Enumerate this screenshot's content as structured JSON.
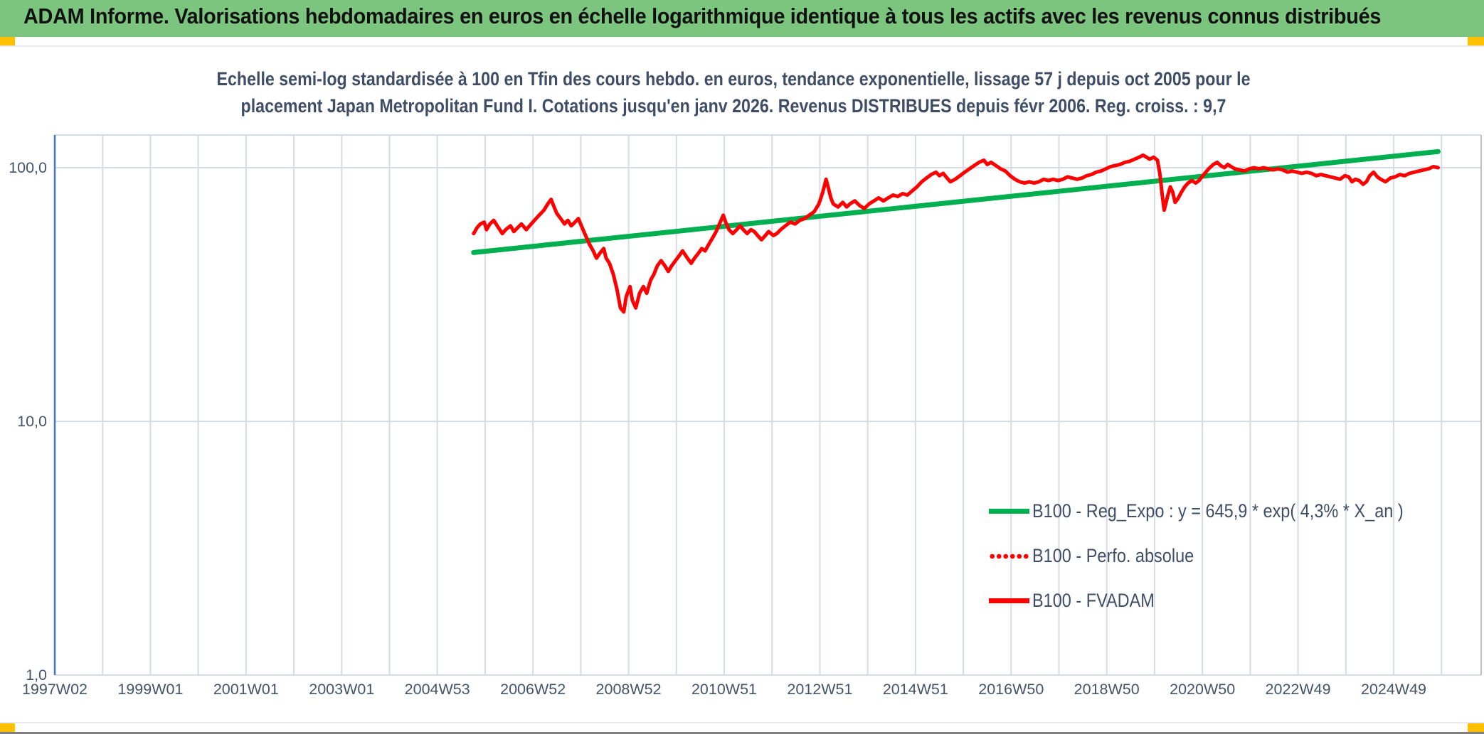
{
  "header": {
    "title": "ADAM Informe. Valorisations hebdomadaires en euros en échelle logarithmique identique à tous les actifs avec les revenus connus distribués"
  },
  "colors": {
    "header_bg": "#7CC57E",
    "accent_gold": "#FFC000",
    "chart_text": "#3F4E66",
    "axis_text": "#44546A",
    "red": "#FF0000",
    "green": "#00B050",
    "axis_blue": "#4472C4",
    "gridline": "#D6DCE5",
    "plot_border": "#BFBFBF",
    "footer_line": "#7F7F7F"
  },
  "chart_data": {
    "type": "line",
    "log_scale_y": true,
    "title_lines": {
      "line1": "Echelle semi-log standardisée à 100 en Tfin des cours hebdo. en euros, tendance exponentielle, lissage 57 j depuis oct 2005 pour le",
      "line2": "placement Japan Metropolitan Fund I. Cotations jusqu'en janv 2026. Revenus DISTRIBUES depuis févr 2006. Reg. croiss. : 9,7"
    },
    "y_axis": {
      "ticks": [
        {
          "value": 100,
          "label": "100,0"
        },
        {
          "value": 10,
          "label": "10,0"
        },
        {
          "value": 1,
          "label": "1,0"
        }
      ],
      "range": [
        1,
        134
      ]
    },
    "x_axis": {
      "start_year": 1997.02,
      "end_year": 2026.85,
      "gridline_every_years": 1,
      "label_every_years": 2,
      "tick_labels": [
        "1997W02",
        "1999W01",
        "2001W01",
        "2003W01",
        "2004W53",
        "2006W52",
        "2008W52",
        "2010W51",
        "2012W51",
        "2014W51",
        "2016W50",
        "2018W50",
        "2020W50",
        "2022W49",
        "2024W49"
      ]
    },
    "legend_position": "inside-right",
    "series": [
      {
        "name": "B100 - Reg_Expo : y = 645,9 * exp( 4,3% *  X_an )",
        "color": "#00B050",
        "style": "solid",
        "width": 7,
        "points": [
          [
            2005.78,
            46.3
          ],
          [
            2025.95,
            115.8
          ]
        ]
      },
      {
        "name": "B100 - Perfo. absolue",
        "color": "#FF0000",
        "style": "dotted",
        "width": 4,
        "same_as": "B100 - FVADAM",
        "points": []
      },
      {
        "name": "B100 - FVADAM",
        "color": "#FF0000",
        "style": "solid",
        "width": 5,
        "points": [
          [
            2005.78,
            55
          ],
          [
            2005.85,
            58
          ],
          [
            2005.92,
            60
          ],
          [
            2006.0,
            61
          ],
          [
            2006.05,
            57
          ],
          [
            2006.12,
            60
          ],
          [
            2006.2,
            62
          ],
          [
            2006.3,
            58
          ],
          [
            2006.38,
            55
          ],
          [
            2006.45,
            57
          ],
          [
            2006.55,
            59
          ],
          [
            2006.62,
            56
          ],
          [
            2006.7,
            58
          ],
          [
            2006.78,
            60
          ],
          [
            2006.88,
            57
          ],
          [
            2006.95,
            59
          ],
          [
            2007.05,
            62
          ],
          [
            2007.15,
            65
          ],
          [
            2007.25,
            68
          ],
          [
            2007.33,
            72
          ],
          [
            2007.4,
            75
          ],
          [
            2007.45,
            71
          ],
          [
            2007.52,
            66
          ],
          [
            2007.6,
            63
          ],
          [
            2007.68,
            60
          ],
          [
            2007.75,
            62
          ],
          [
            2007.82,
            59
          ],
          [
            2007.9,
            61
          ],
          [
            2007.97,
            63
          ],
          [
            2008.05,
            58
          ],
          [
            2008.12,
            54
          ],
          [
            2008.2,
            50
          ],
          [
            2008.28,
            47
          ],
          [
            2008.35,
            44
          ],
          [
            2008.42,
            46
          ],
          [
            2008.5,
            48
          ],
          [
            2008.55,
            44
          ],
          [
            2008.62,
            42
          ],
          [
            2008.7,
            38
          ],
          [
            2008.78,
            33
          ],
          [
            2008.85,
            28
          ],
          [
            2008.92,
            27
          ],
          [
            2008.97,
            31
          ],
          [
            2009.05,
            34
          ],
          [
            2009.1,
            30
          ],
          [
            2009.17,
            28
          ],
          [
            2009.25,
            32
          ],
          [
            2009.33,
            34
          ],
          [
            2009.4,
            32
          ],
          [
            2009.48,
            36
          ],
          [
            2009.55,
            38
          ],
          [
            2009.62,
            41
          ],
          [
            2009.7,
            43
          ],
          [
            2009.78,
            41
          ],
          [
            2009.85,
            39
          ],
          [
            2009.92,
            41
          ],
          [
            2010.0,
            43
          ],
          [
            2010.08,
            45
          ],
          [
            2010.15,
            47
          ],
          [
            2010.25,
            44
          ],
          [
            2010.33,
            42
          ],
          [
            2010.4,
            44
          ],
          [
            2010.48,
            46
          ],
          [
            2010.55,
            48
          ],
          [
            2010.62,
            47
          ],
          [
            2010.7,
            50
          ],
          [
            2010.78,
            53
          ],
          [
            2010.85,
            56
          ],
          [
            2010.92,
            60
          ],
          [
            2011.0,
            65
          ],
          [
            2011.05,
            61
          ],
          [
            2011.12,
            57
          ],
          [
            2011.2,
            55
          ],
          [
            2011.28,
            57
          ],
          [
            2011.35,
            59
          ],
          [
            2011.42,
            57
          ],
          [
            2011.5,
            55
          ],
          [
            2011.58,
            57
          ],
          [
            2011.65,
            56
          ],
          [
            2011.72,
            54
          ],
          [
            2011.8,
            52
          ],
          [
            2011.88,
            54
          ],
          [
            2011.95,
            56
          ],
          [
            2012.05,
            54
          ],
          [
            2012.12,
            55
          ],
          [
            2012.2,
            57
          ],
          [
            2012.3,
            59
          ],
          [
            2012.4,
            61
          ],
          [
            2012.5,
            60
          ],
          [
            2012.6,
            62
          ],
          [
            2012.7,
            63
          ],
          [
            2012.8,
            65
          ],
          [
            2012.9,
            67
          ],
          [
            2013.0,
            72
          ],
          [
            2013.08,
            80
          ],
          [
            2013.15,
            90
          ],
          [
            2013.2,
            83
          ],
          [
            2013.25,
            76
          ],
          [
            2013.3,
            72
          ],
          [
            2013.4,
            70
          ],
          [
            2013.5,
            73
          ],
          [
            2013.58,
            70
          ],
          [
            2013.65,
            72
          ],
          [
            2013.75,
            74
          ],
          [
            2013.85,
            71
          ],
          [
            2013.95,
            69
          ],
          [
            2014.05,
            72
          ],
          [
            2014.15,
            74
          ],
          [
            2014.25,
            76
          ],
          [
            2014.35,
            74
          ],
          [
            2014.45,
            76
          ],
          [
            2014.55,
            78
          ],
          [
            2014.65,
            77
          ],
          [
            2014.75,
            79
          ],
          [
            2014.85,
            78
          ],
          [
            2014.95,
            81
          ],
          [
            2015.05,
            84
          ],
          [
            2015.15,
            88
          ],
          [
            2015.25,
            91
          ],
          [
            2015.35,
            94
          ],
          [
            2015.45,
            96
          ],
          [
            2015.52,
            93
          ],
          [
            2015.6,
            95
          ],
          [
            2015.68,
            91
          ],
          [
            2015.75,
            88
          ],
          [
            2015.85,
            90
          ],
          [
            2015.95,
            93
          ],
          [
            2016.05,
            96
          ],
          [
            2016.15,
            99
          ],
          [
            2016.25,
            102
          ],
          [
            2016.35,
            105
          ],
          [
            2016.45,
            107
          ],
          [
            2016.52,
            103
          ],
          [
            2016.6,
            105
          ],
          [
            2016.7,
            102
          ],
          [
            2016.8,
            99
          ],
          [
            2016.9,
            97
          ],
          [
            2017.0,
            93
          ],
          [
            2017.1,
            90
          ],
          [
            2017.2,
            88
          ],
          [
            2017.3,
            87
          ],
          [
            2017.4,
            88
          ],
          [
            2017.5,
            87
          ],
          [
            2017.6,
            88
          ],
          [
            2017.7,
            90
          ],
          [
            2017.8,
            89
          ],
          [
            2017.9,
            90
          ],
          [
            2018.0,
            89
          ],
          [
            2018.1,
            90
          ],
          [
            2018.2,
            92
          ],
          [
            2018.3,
            91
          ],
          [
            2018.4,
            90
          ],
          [
            2018.5,
            91
          ],
          [
            2018.6,
            93
          ],
          [
            2018.7,
            94
          ],
          [
            2018.8,
            96
          ],
          [
            2018.9,
            97
          ],
          [
            2019.0,
            99
          ],
          [
            2019.1,
            101
          ],
          [
            2019.2,
            102
          ],
          [
            2019.3,
            103
          ],
          [
            2019.4,
            105
          ],
          [
            2019.5,
            106
          ],
          [
            2019.6,
            108
          ],
          [
            2019.7,
            110
          ],
          [
            2019.78,
            112
          ],
          [
            2019.85,
            110
          ],
          [
            2019.92,
            108
          ],
          [
            2020.0,
            110
          ],
          [
            2020.08,
            107
          ],
          [
            2020.13,
            95
          ],
          [
            2020.18,
            78
          ],
          [
            2020.22,
            68
          ],
          [
            2020.3,
            78
          ],
          [
            2020.35,
            84
          ],
          [
            2020.4,
            80
          ],
          [
            2020.45,
            73
          ],
          [
            2020.5,
            75
          ],
          [
            2020.58,
            80
          ],
          [
            2020.65,
            84
          ],
          [
            2020.72,
            87
          ],
          [
            2020.8,
            89
          ],
          [
            2020.88,
            87
          ],
          [
            2020.95,
            89
          ],
          [
            2021.05,
            94
          ],
          [
            2021.15,
            99
          ],
          [
            2021.25,
            103
          ],
          [
            2021.33,
            105
          ],
          [
            2021.4,
            102
          ],
          [
            2021.48,
            100
          ],
          [
            2021.55,
            103
          ],
          [
            2021.62,
            101
          ],
          [
            2021.7,
            99
          ],
          [
            2021.8,
            98
          ],
          [
            2021.9,
            97
          ],
          [
            2022.0,
            99
          ],
          [
            2022.1,
            100
          ],
          [
            2022.2,
            99
          ],
          [
            2022.3,
            100
          ],
          [
            2022.4,
            99
          ],
          [
            2022.5,
            98
          ],
          [
            2022.6,
            99
          ],
          [
            2022.7,
            98
          ],
          [
            2022.8,
            96
          ],
          [
            2022.9,
            97
          ],
          [
            2023.0,
            96
          ],
          [
            2023.1,
            95
          ],
          [
            2023.2,
            96
          ],
          [
            2023.3,
            95
          ],
          [
            2023.4,
            93
          ],
          [
            2023.5,
            94
          ],
          [
            2023.6,
            93
          ],
          [
            2023.7,
            92
          ],
          [
            2023.8,
            91
          ],
          [
            2023.9,
            90
          ],
          [
            2024.0,
            93
          ],
          [
            2024.08,
            92
          ],
          [
            2024.15,
            88
          ],
          [
            2024.22,
            90
          ],
          [
            2024.3,
            89
          ],
          [
            2024.38,
            86
          ],
          [
            2024.45,
            88
          ],
          [
            2024.52,
            93
          ],
          [
            2024.6,
            96
          ],
          [
            2024.68,
            92
          ],
          [
            2024.75,
            90
          ],
          [
            2024.85,
            88
          ],
          [
            2024.95,
            91
          ],
          [
            2025.05,
            92
          ],
          [
            2025.15,
            94
          ],
          [
            2025.25,
            93
          ],
          [
            2025.35,
            95
          ],
          [
            2025.45,
            96
          ],
          [
            2025.55,
            97
          ],
          [
            2025.65,
            98
          ],
          [
            2025.75,
            99
          ],
          [
            2025.85,
            101
          ],
          [
            2025.95,
            100
          ]
        ]
      }
    ]
  }
}
